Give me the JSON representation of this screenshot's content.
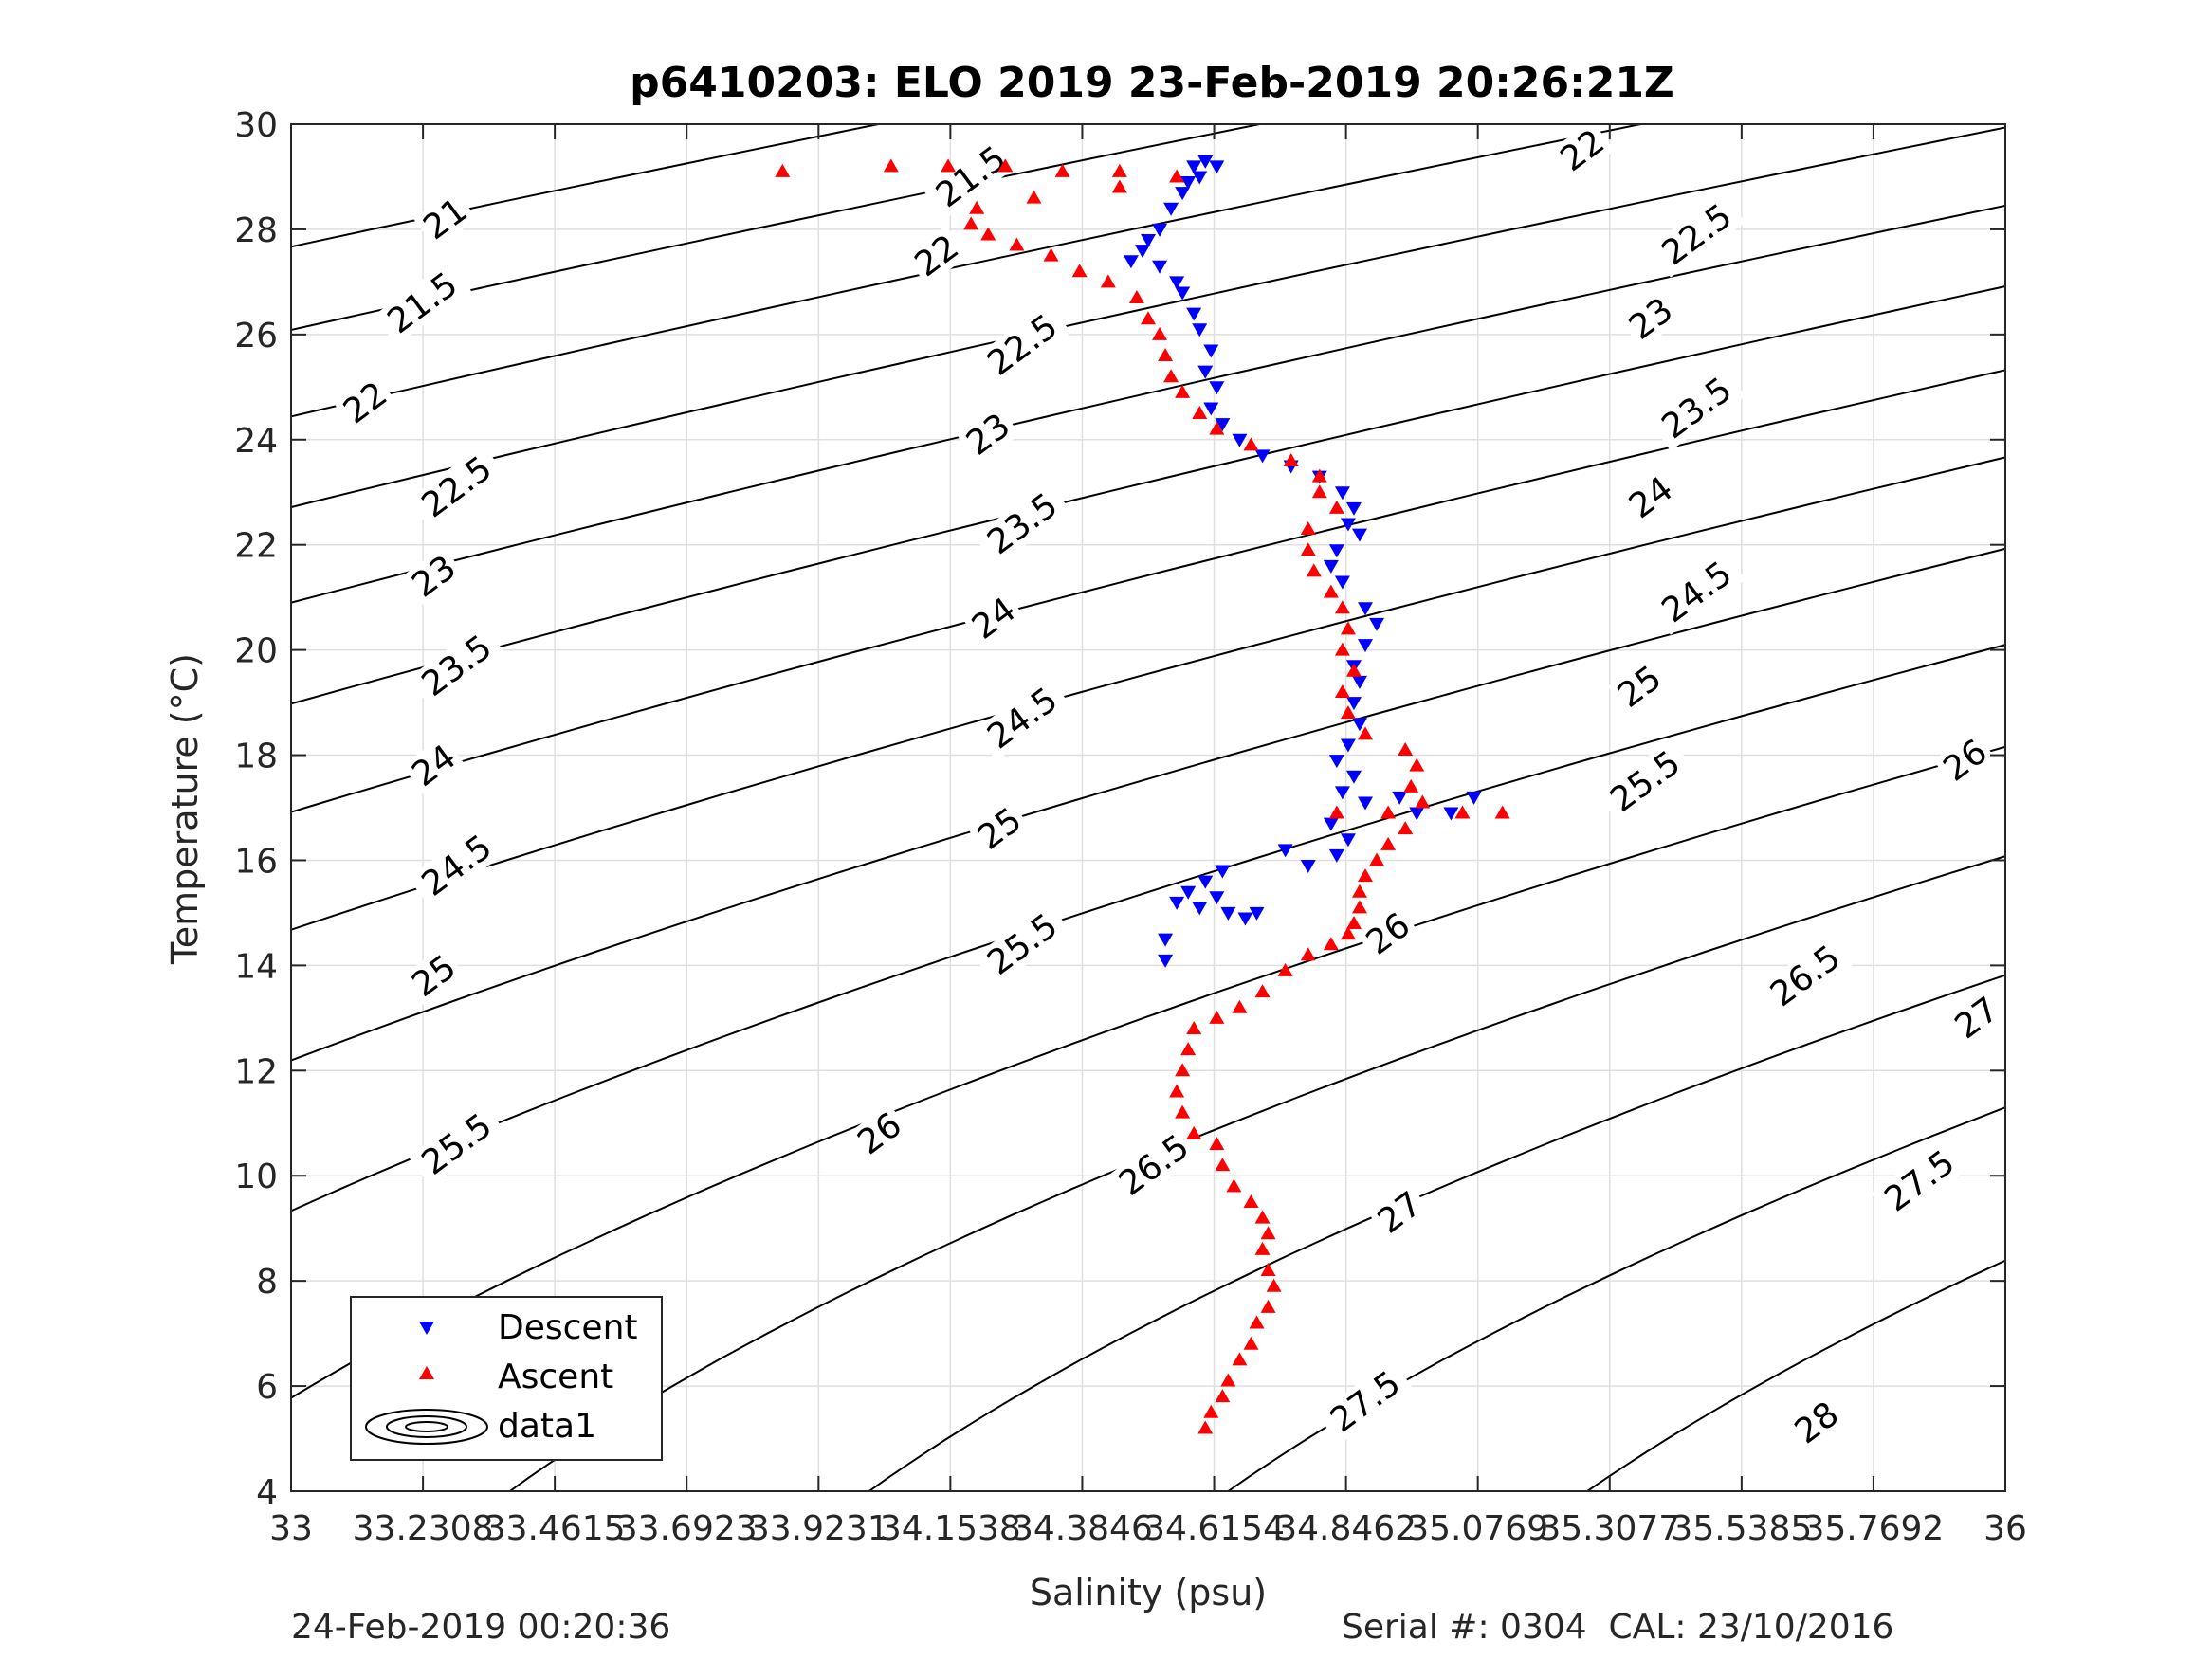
{
  "chart_data": {
    "type": "scatter",
    "title": "p6410203: ELO 2019 23-Feb-2019 20:26:21Z",
    "xlabel": "Salinity (psu)",
    "ylabel": "Temperature (°C)",
    "xlim": [
      33,
      36
    ],
    "ylim": [
      4,
      30
    ],
    "xticks": [
      33,
      33.2308,
      33.4615,
      33.6923,
      33.9231,
      34.1538,
      34.3846,
      34.6154,
      34.8462,
      35.0769,
      35.3077,
      35.5385,
      35.7692,
      36
    ],
    "xtick_labels": [
      "33",
      "33.2308",
      "33.4615",
      "33.6923",
      "33.9231",
      "34.1538",
      "34.3846",
      "34.6154",
      "34.8462",
      "35.0769",
      "35.3077",
      "35.5385",
      "35.7692",
      "36"
    ],
    "yticks": [
      4,
      6,
      8,
      10,
      12,
      14,
      16,
      18,
      20,
      22,
      24,
      26,
      28,
      30
    ],
    "ytick_labels": [
      "4",
      "6",
      "8",
      "10",
      "12",
      "14",
      "16",
      "18",
      "20",
      "22",
      "24",
      "26",
      "28",
      "30"
    ],
    "grid": true,
    "legend_position": "bottom-left",
    "legend": [
      "Descent",
      "Ascent",
      "data1"
    ],
    "density_contours": {
      "name": "data1",
      "levels": [
        21,
        21.5,
        22,
        22.5,
        23,
        23.5,
        24,
        24.5,
        25,
        25.5,
        26,
        26.5,
        27,
        27.5,
        28
      ],
      "labels": [
        {
          "text": "21",
          "s": 33.27,
          "t": 28.2
        },
        {
          "text": "21.5",
          "s": 33.23,
          "t": 26.6
        },
        {
          "text": "22",
          "s": 33.13,
          "t": 24.7
        },
        {
          "text": "22.5",
          "s": 33.29,
          "t": 23.1
        },
        {
          "text": "23",
          "s": 33.25,
          "t": 21.4
        },
        {
          "text": "23.5",
          "s": 33.29,
          "t": 19.7
        },
        {
          "text": "24",
          "s": 33.25,
          "t": 17.8
        },
        {
          "text": "24.5",
          "s": 33.29,
          "t": 15.9
        },
        {
          "text": "25",
          "s": 33.25,
          "t": 13.8
        },
        {
          "text": "25.5",
          "s": 33.29,
          "t": 10.6
        },
        {
          "text": "26.5",
          "s": 33.58,
          "t": 5.4
        },
        {
          "text": "21.5",
          "s": 34.19,
          "t": 29.0
        },
        {
          "text": "22",
          "s": 34.13,
          "t": 27.5
        },
        {
          "text": "22.5",
          "s": 34.28,
          "t": 25.8
        },
        {
          "text": "23",
          "s": 34.22,
          "t": 24.1
        },
        {
          "text": "23.5",
          "s": 34.28,
          "t": 22.4
        },
        {
          "text": "24",
          "s": 34.23,
          "t": 20.6
        },
        {
          "text": "24.5",
          "s": 34.28,
          "t": 18.7
        },
        {
          "text": "25",
          "s": 34.24,
          "t": 16.6
        },
        {
          "text": "25.5",
          "s": 34.28,
          "t": 14.4
        },
        {
          "text": "26",
          "s": 34.03,
          "t": 10.8
        },
        {
          "text": "26.5",
          "s": 34.51,
          "t": 10.2
        },
        {
          "text": "26",
          "s": 34.92,
          "t": 14.6
        },
        {
          "text": "27",
          "s": 34.94,
          "t": 9.3
        },
        {
          "text": "27.5",
          "s": 34.88,
          "t": 5.7
        },
        {
          "text": "22",
          "s": 35.26,
          "t": 29.5
        },
        {
          "text": "22.5",
          "s": 35.46,
          "t": 27.9
        },
        {
          "text": "23",
          "s": 35.38,
          "t": 26.3
        },
        {
          "text": "23.5",
          "s": 35.46,
          "t": 24.6
        },
        {
          "text": "24",
          "s": 35.38,
          "t": 22.9
        },
        {
          "text": "24.5",
          "s": 35.46,
          "t": 21.1
        },
        {
          "text": "25",
          "s": 35.36,
          "t": 19.3
        },
        {
          "text": "25.5",
          "s": 35.37,
          "t": 17.5
        },
        {
          "text": "26",
          "s": 35.93,
          "t": 17.9
        },
        {
          "text": "26.5",
          "s": 35.65,
          "t": 13.8
        },
        {
          "text": "27",
          "s": 35.95,
          "t": 13.0
        },
        {
          "text": "27.5",
          "s": 35.85,
          "t": 9.9
        },
        {
          "text": "28",
          "s": 35.67,
          "t": 5.3
        }
      ]
    },
    "series": [
      {
        "name": "Descent",
        "marker": "triangle-down",
        "color": "#0000ff",
        "points": [
          [
            34.58,
            29.2
          ],
          [
            34.6,
            29.3
          ],
          [
            34.62,
            29.2
          ],
          [
            34.59,
            29.0
          ],
          [
            34.57,
            28.9
          ],
          [
            34.56,
            28.7
          ],
          [
            34.54,
            28.4
          ],
          [
            34.52,
            28.0
          ],
          [
            34.5,
            27.8
          ],
          [
            34.49,
            27.6
          ],
          [
            34.47,
            27.4
          ],
          [
            34.52,
            27.3
          ],
          [
            34.55,
            27.0
          ],
          [
            34.56,
            26.8
          ],
          [
            34.58,
            26.4
          ],
          [
            34.59,
            26.1
          ],
          [
            34.61,
            25.7
          ],
          [
            34.6,
            25.3
          ],
          [
            34.62,
            25.0
          ],
          [
            34.61,
            24.6
          ],
          [
            34.63,
            24.3
          ],
          [
            34.66,
            24.0
          ],
          [
            34.7,
            23.7
          ],
          [
            34.75,
            23.5
          ],
          [
            34.8,
            23.3
          ],
          [
            34.84,
            23.0
          ],
          [
            34.86,
            22.7
          ],
          [
            34.85,
            22.4
          ],
          [
            34.87,
            22.2
          ],
          [
            34.83,
            21.9
          ],
          [
            34.82,
            21.6
          ],
          [
            34.84,
            21.3
          ],
          [
            34.88,
            20.8
          ],
          [
            34.9,
            20.5
          ],
          [
            34.88,
            20.1
          ],
          [
            34.86,
            19.7
          ],
          [
            34.87,
            19.4
          ],
          [
            34.86,
            19.0
          ],
          [
            34.87,
            18.6
          ],
          [
            34.85,
            18.2
          ],
          [
            34.83,
            17.9
          ],
          [
            34.86,
            17.6
          ],
          [
            34.84,
            17.3
          ],
          [
            34.88,
            17.1
          ],
          [
            34.94,
            17.2
          ],
          [
            34.97,
            16.9
          ],
          [
            35.03,
            16.9
          ],
          [
            35.07,
            17.2
          ],
          [
            34.82,
            16.7
          ],
          [
            34.85,
            16.4
          ],
          [
            34.83,
            16.1
          ],
          [
            34.78,
            15.9
          ],
          [
            34.74,
            16.2
          ],
          [
            34.63,
            15.8
          ],
          [
            34.6,
            15.6
          ],
          [
            34.57,
            15.4
          ],
          [
            34.55,
            15.2
          ],
          [
            34.62,
            15.3
          ],
          [
            34.64,
            15.0
          ],
          [
            34.67,
            14.9
          ],
          [
            34.69,
            15.0
          ],
          [
            34.59,
            15.1
          ],
          [
            34.53,
            14.5
          ],
          [
            34.53,
            14.1
          ]
        ]
      },
      {
        "name": "Ascent",
        "marker": "triangle-up",
        "color": "#ff0000",
        "points": [
          [
            33.86,
            29.1
          ],
          [
            34.05,
            29.2
          ],
          [
            34.15,
            29.2
          ],
          [
            34.25,
            29.2
          ],
          [
            34.35,
            29.1
          ],
          [
            34.45,
            29.1
          ],
          [
            34.55,
            29.0
          ],
          [
            34.45,
            28.8
          ],
          [
            34.3,
            28.6
          ],
          [
            34.2,
            28.4
          ],
          [
            34.19,
            28.1
          ],
          [
            34.22,
            27.9
          ],
          [
            34.27,
            27.7
          ],
          [
            34.33,
            27.5
          ],
          [
            34.38,
            27.2
          ],
          [
            34.43,
            27.0
          ],
          [
            34.48,
            26.7
          ],
          [
            34.5,
            26.3
          ],
          [
            34.52,
            26.0
          ],
          [
            34.53,
            25.6
          ],
          [
            34.54,
            25.2
          ],
          [
            34.56,
            24.9
          ],
          [
            34.59,
            24.5
          ],
          [
            34.62,
            24.2
          ],
          [
            34.68,
            23.9
          ],
          [
            34.75,
            23.6
          ],
          [
            34.8,
            23.3
          ],
          [
            34.8,
            23.0
          ],
          [
            34.83,
            22.7
          ],
          [
            34.78,
            22.3
          ],
          [
            34.78,
            21.9
          ],
          [
            34.79,
            21.5
          ],
          [
            34.82,
            21.1
          ],
          [
            34.84,
            20.8
          ],
          [
            34.85,
            20.4
          ],
          [
            34.84,
            20.0
          ],
          [
            34.86,
            19.6
          ],
          [
            34.84,
            19.2
          ],
          [
            34.85,
            18.8
          ],
          [
            34.88,
            18.4
          ],
          [
            34.95,
            18.1
          ],
          [
            34.97,
            17.8
          ],
          [
            34.96,
            17.4
          ],
          [
            34.98,
            17.1
          ],
          [
            35.05,
            16.9
          ],
          [
            35.12,
            16.9
          ],
          [
            34.92,
            16.9
          ],
          [
            34.83,
            16.9
          ],
          [
            34.95,
            16.6
          ],
          [
            34.92,
            16.3
          ],
          [
            34.9,
            16.0
          ],
          [
            34.88,
            15.7
          ],
          [
            34.87,
            15.4
          ],
          [
            34.87,
            15.1
          ],
          [
            34.86,
            14.8
          ],
          [
            34.85,
            14.6
          ],
          [
            34.82,
            14.4
          ],
          [
            34.78,
            14.2
          ],
          [
            34.74,
            13.9
          ],
          [
            34.7,
            13.5
          ],
          [
            34.66,
            13.2
          ],
          [
            34.62,
            13.0
          ],
          [
            34.58,
            12.8
          ],
          [
            34.57,
            12.4
          ],
          [
            34.56,
            12.0
          ],
          [
            34.55,
            11.6
          ],
          [
            34.56,
            11.2
          ],
          [
            34.58,
            10.8
          ],
          [
            34.62,
            10.6
          ],
          [
            34.63,
            10.2
          ],
          [
            34.65,
            9.8
          ],
          [
            34.68,
            9.5
          ],
          [
            34.7,
            9.2
          ],
          [
            34.71,
            8.9
          ],
          [
            34.7,
            8.6
          ],
          [
            34.71,
            8.2
          ],
          [
            34.72,
            7.9
          ],
          [
            34.71,
            7.5
          ],
          [
            34.69,
            7.2
          ],
          [
            34.68,
            6.8
          ],
          [
            34.66,
            6.5
          ],
          [
            34.64,
            6.1
          ],
          [
            34.63,
            5.8
          ],
          [
            34.61,
            5.5
          ],
          [
            34.6,
            5.2
          ]
        ]
      }
    ],
    "footer_left": "24-Feb-2019 00:20:36",
    "footer_right": "Serial #: 0304  CAL: 23/10/2016"
  }
}
